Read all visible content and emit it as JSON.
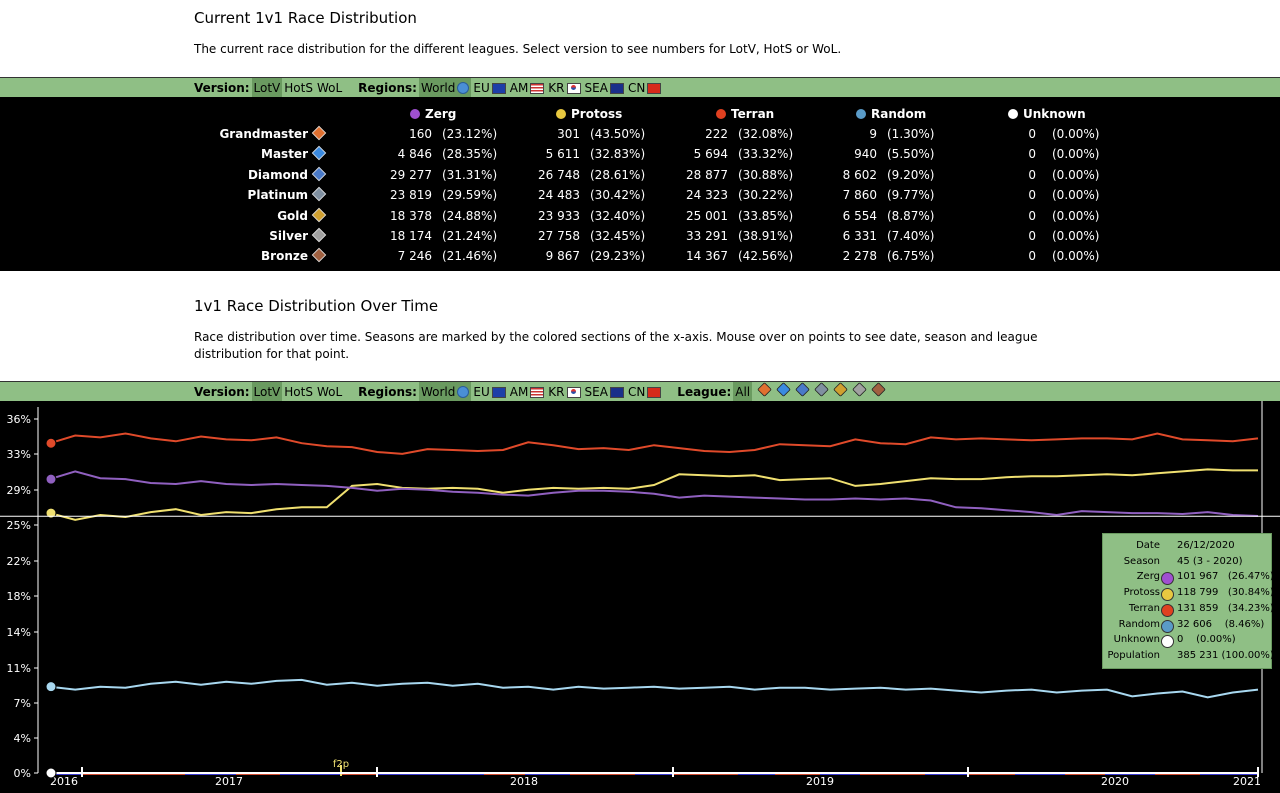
{
  "section1": {
    "title": "Current 1v1 Race Distribution",
    "description": "The current race distribution for the different leagues. Select version to see numbers for LotV, HotS or WoL."
  },
  "toolbar": {
    "version_label": "Version:",
    "versions": [
      "LotV",
      "HotS",
      "WoL"
    ],
    "selected_version": "LotV",
    "regions_label": "Regions:",
    "regions": [
      "World",
      "EU",
      "AM",
      "KR",
      "SEA",
      "CN"
    ],
    "selected_region": "World",
    "league_label": "League:",
    "league_all": "All"
  },
  "table": {
    "races": [
      "Zerg",
      "Protoss",
      "Terran",
      "Random",
      "Unknown"
    ],
    "race_colors": [
      "#a050d0",
      "#e8c840",
      "#e04020",
      "#5a9bc8",
      "#ffffff"
    ],
    "rows": [
      {
        "league": "Grandmaster",
        "color": "#e07030",
        "cells": [
          [
            "160",
            "(23.12%)"
          ],
          [
            "301",
            "(43.50%)"
          ],
          [
            "222",
            "(32.08%)"
          ],
          [
            "9",
            "(1.30%)"
          ],
          [
            "0",
            "(0.00%)"
          ]
        ]
      },
      {
        "league": "Master",
        "color": "#3a8ae0",
        "cells": [
          [
            "4 846",
            "(28.35%)"
          ],
          [
            "5 611",
            "(32.83%)"
          ],
          [
            "5 694",
            "(33.32%)"
          ],
          [
            "940",
            "(5.50%)"
          ],
          [
            "0",
            "(0.00%)"
          ]
        ]
      },
      {
        "league": "Diamond",
        "color": "#4a7ac8",
        "cells": [
          [
            "29 277",
            "(31.31%)"
          ],
          [
            "26 748",
            "(28.61%)"
          ],
          [
            "28 877",
            "(30.88%)"
          ],
          [
            "8 602",
            "(9.20%)"
          ],
          [
            "0",
            "(0.00%)"
          ]
        ]
      },
      {
        "league": "Platinum",
        "color": "#8090a0",
        "cells": [
          [
            "23 819",
            "(29.59%)"
          ],
          [
            "24 483",
            "(30.42%)"
          ],
          [
            "24 323",
            "(30.22%)"
          ],
          [
            "7 860",
            "(9.77%)"
          ],
          [
            "0",
            "(0.00%)"
          ]
        ]
      },
      {
        "league": "Gold",
        "color": "#d0a030",
        "cells": [
          [
            "18 378",
            "(24.88%)"
          ],
          [
            "23 933",
            "(32.40%)"
          ],
          [
            "25 001",
            "(33.85%)"
          ],
          [
            "6 554",
            "(8.87%)"
          ],
          [
            "0",
            "(0.00%)"
          ]
        ]
      },
      {
        "league": "Silver",
        "color": "#a0a0a0",
        "cells": [
          [
            "18 174",
            "(21.24%)"
          ],
          [
            "27 758",
            "(32.45%)"
          ],
          [
            "33 291",
            "(38.91%)"
          ],
          [
            "6 331",
            "(7.40%)"
          ],
          [
            "0",
            "(0.00%)"
          ]
        ]
      },
      {
        "league": "Bronze",
        "color": "#a06040",
        "cells": [
          [
            "7 246",
            "(21.46%)"
          ],
          [
            "9 867",
            "(29.23%)"
          ],
          [
            "14 367",
            "(42.56%)"
          ],
          [
            "2 278",
            "(6.75%)"
          ],
          [
            "0",
            "(0.00%)"
          ]
        ]
      }
    ]
  },
  "section2": {
    "title": "1v1 Race Distribution Over Time",
    "description": "Race distribution over time. Seasons are marked by the colored sections of the x-axis. Mouse over on points to see date, season and league distribution for that point."
  },
  "chart_data": {
    "type": "line",
    "y_ticks": [
      "36%",
      "33%",
      "29%",
      "25%",
      "22%",
      "18%",
      "14%",
      "11%",
      "7%",
      "4%",
      "0%"
    ],
    "ylim": [
      0,
      36.5
    ],
    "x_ticks": [
      "2016",
      "2017",
      "2018",
      "2019",
      "2020",
      "2021"
    ],
    "annotation": "f2p",
    "series": [
      {
        "color": "#e04a2a",
        "values": [
          34.0,
          34.8,
          34.6,
          35.0,
          34.5,
          34.2,
          34.7,
          34.4,
          34.3,
          34.6,
          34.0,
          33.7,
          33.6,
          33.1,
          32.9,
          33.4,
          33.3,
          33.2,
          33.3,
          34.1,
          33.8,
          33.4,
          33.5,
          33.3,
          33.8,
          33.5,
          33.2,
          33.1,
          33.3,
          33.9,
          33.8,
          33.7,
          34.4,
          34.0,
          33.9,
          34.6,
          34.4,
          34.5,
          34.4,
          34.3,
          34.4,
          34.5,
          34.5,
          34.4,
          35.0,
          34.4,
          34.3,
          34.2,
          34.5
        ]
      },
      {
        "color": "#f0e070",
        "values": [
          26.8,
          26.1,
          26.6,
          26.4,
          26.9,
          27.2,
          26.6,
          26.9,
          26.8,
          27.2,
          27.4,
          27.4,
          29.6,
          29.8,
          29.4,
          29.3,
          29.4,
          29.3,
          28.9,
          29.2,
          29.4,
          29.3,
          29.4,
          29.3,
          29.7,
          30.8,
          30.7,
          30.6,
          30.7,
          30.2,
          30.3,
          30.4,
          29.6,
          29.8,
          30.1,
          30.4,
          30.3,
          30.3,
          30.5,
          30.6,
          30.6,
          30.7,
          30.8,
          30.7,
          30.9,
          31.1,
          31.3,
          31.2,
          31.2
        ]
      },
      {
        "color": "#9060c0",
        "values": [
          30.3,
          31.1,
          30.4,
          30.3,
          29.9,
          29.8,
          30.1,
          29.8,
          29.7,
          29.8,
          29.7,
          29.6,
          29.4,
          29.1,
          29.3,
          29.2,
          29.0,
          28.9,
          28.7,
          28.6,
          28.9,
          29.1,
          29.1,
          29.0,
          28.8,
          28.4,
          28.6,
          28.5,
          28.4,
          28.3,
          28.2,
          28.2,
          28.3,
          28.2,
          28.3,
          28.1,
          27.4,
          27.3,
          27.1,
          26.9,
          26.6,
          27.0,
          26.9,
          26.8,
          26.8,
          26.7,
          26.9,
          26.6,
          26.5
        ]
      },
      {
        "color": "#a8d8f0",
        "values": [
          8.9,
          8.6,
          8.9,
          8.8,
          9.2,
          9.4,
          9.1,
          9.4,
          9.2,
          9.5,
          9.6,
          9.1,
          9.3,
          9.0,
          9.2,
          9.3,
          9.0,
          9.2,
          8.8,
          8.9,
          8.6,
          8.9,
          8.7,
          8.8,
          8.9,
          8.7,
          8.8,
          8.9,
          8.6,
          8.8,
          8.8,
          8.6,
          8.7,
          8.8,
          8.6,
          8.7,
          8.5,
          8.3,
          8.5,
          8.6,
          8.3,
          8.5,
          8.6,
          7.9,
          8.2,
          8.4,
          7.8,
          8.3,
          8.6
        ]
      },
      {
        "color": "#ffffff",
        "values": [
          0.0,
          0.0,
          0.0,
          0.0,
          0.0,
          0.0,
          0.0,
          0.0,
          0.0,
          0.0,
          0.0,
          0.0,
          0.0,
          0.0,
          0.0,
          0.0,
          0.0,
          0.0,
          0.0,
          0.0,
          0.0,
          0.0,
          0.0,
          0.0,
          0.0,
          0.0,
          0.0,
          0.0,
          0.0,
          0.0,
          0.0,
          0.0,
          0.0,
          0.0,
          0.0,
          0.0,
          0.0,
          0.0,
          0.0,
          0.0,
          0.0,
          0.0,
          0.0,
          0.0,
          0.0,
          0.0,
          0.0,
          0.0,
          0.0
        ]
      }
    ],
    "crosshair_value": 26.47
  },
  "tooltip": {
    "rows": [
      {
        "key": "Date",
        "value": "26/12/2020",
        "icon": ""
      },
      {
        "key": "Season",
        "value": "45 (3 - 2020)",
        "icon": ""
      },
      {
        "key": "Zerg",
        "value": "101 967   (26.47%)",
        "icon": "#a050d0"
      },
      {
        "key": "Protoss",
        "value": "118 799   (30.84%)",
        "icon": "#e8c840"
      },
      {
        "key": "Terran",
        "value": "131 859   (34.23%)",
        "icon": "#e04020"
      },
      {
        "key": "Random",
        "value": "32 606    (8.46%)",
        "icon": "#5a9bc8"
      },
      {
        "key": "Unknown",
        "value": "0    (0.00%)",
        "icon": "#ffffff"
      },
      {
        "key": "Population",
        "value": "385 231 (100.00%)",
        "icon": ""
      }
    ]
  }
}
